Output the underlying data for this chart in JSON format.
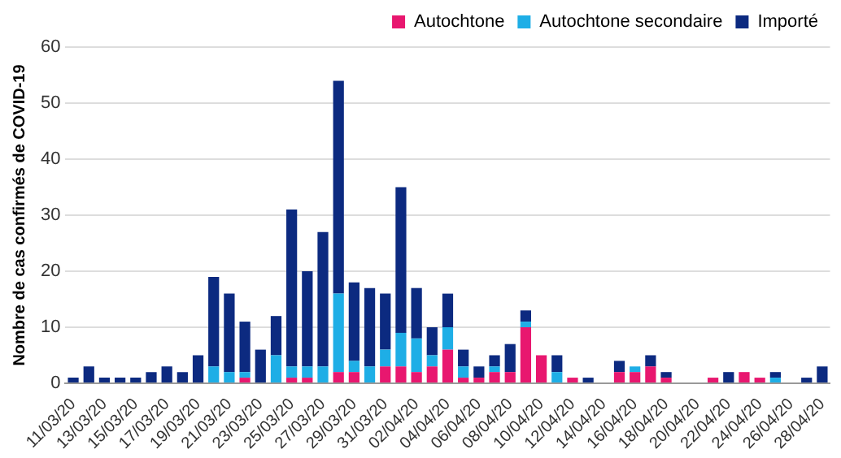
{
  "chart_data": {
    "type": "bar",
    "stacked": true,
    "ylabel": "Nombre de cas confirmés de COVID-19",
    "categories": [
      "11/03/20",
      null,
      "13/03/20",
      null,
      "15/03/20",
      null,
      "17/03/20",
      null,
      "19/03/20",
      null,
      "21/03/20",
      null,
      "23/03/20",
      null,
      "25/03/20",
      null,
      "27/03/20",
      null,
      "29/03/20",
      null,
      "31/03/20",
      null,
      "02/04/20",
      null,
      "04/04/20",
      null,
      "06/04/20",
      null,
      "08/04/20",
      null,
      "10/04/20",
      null,
      "12/04/20",
      null,
      "14/04/20",
      null,
      "16/04/20",
      null,
      "18/04/20",
      null,
      "20/04/20",
      null,
      "22/04/20",
      null,
      "24/04/20",
      null,
      "26/04/20",
      null,
      "28/04/20"
    ],
    "series": [
      {
        "name": "Autochtone",
        "color": "#e8176f",
        "values": [
          0,
          0,
          0,
          0,
          0,
          0,
          0,
          0,
          0,
          0,
          0,
          1,
          0,
          0,
          1,
          1,
          0,
          2,
          2,
          0,
          3,
          3,
          2,
          3,
          6,
          1,
          1,
          2,
          2,
          10,
          5,
          0,
          1,
          0,
          0,
          2,
          2,
          3,
          1,
          0,
          0,
          1,
          0,
          2,
          1,
          0,
          0,
          0,
          0
        ]
      },
      {
        "name": "Autochtone secondaire",
        "color": "#1eaee6",
        "values": [
          0,
          0,
          0,
          0,
          0,
          0,
          0,
          0,
          0,
          3,
          2,
          1,
          0,
          5,
          2,
          2,
          3,
          14,
          2,
          3,
          3,
          6,
          6,
          2,
          4,
          2,
          0,
          1,
          0,
          1,
          0,
          2,
          0,
          0,
          0,
          0,
          1,
          0,
          0,
          0,
          0,
          0,
          0,
          0,
          0,
          1,
          0,
          0,
          0
        ]
      },
      {
        "name": "Importé",
        "color": "#0c2a80",
        "values": [
          1,
          3,
          1,
          1,
          1,
          2,
          3,
          2,
          5,
          16,
          14,
          9,
          6,
          7,
          28,
          17,
          24,
          38,
          14,
          14,
          10,
          26,
          9,
          5,
          6,
          3,
          2,
          2,
          5,
          2,
          0,
          3,
          0,
          1,
          0,
          2,
          0,
          2,
          1,
          0,
          0,
          0,
          2,
          0,
          0,
          1,
          0,
          1,
          3
        ]
      }
    ],
    "ylim": [
      0,
      60
    ],
    "yticks": [
      0,
      10,
      20,
      30,
      40,
      50,
      60
    ],
    "grid": "y",
    "legend": "top right"
  }
}
